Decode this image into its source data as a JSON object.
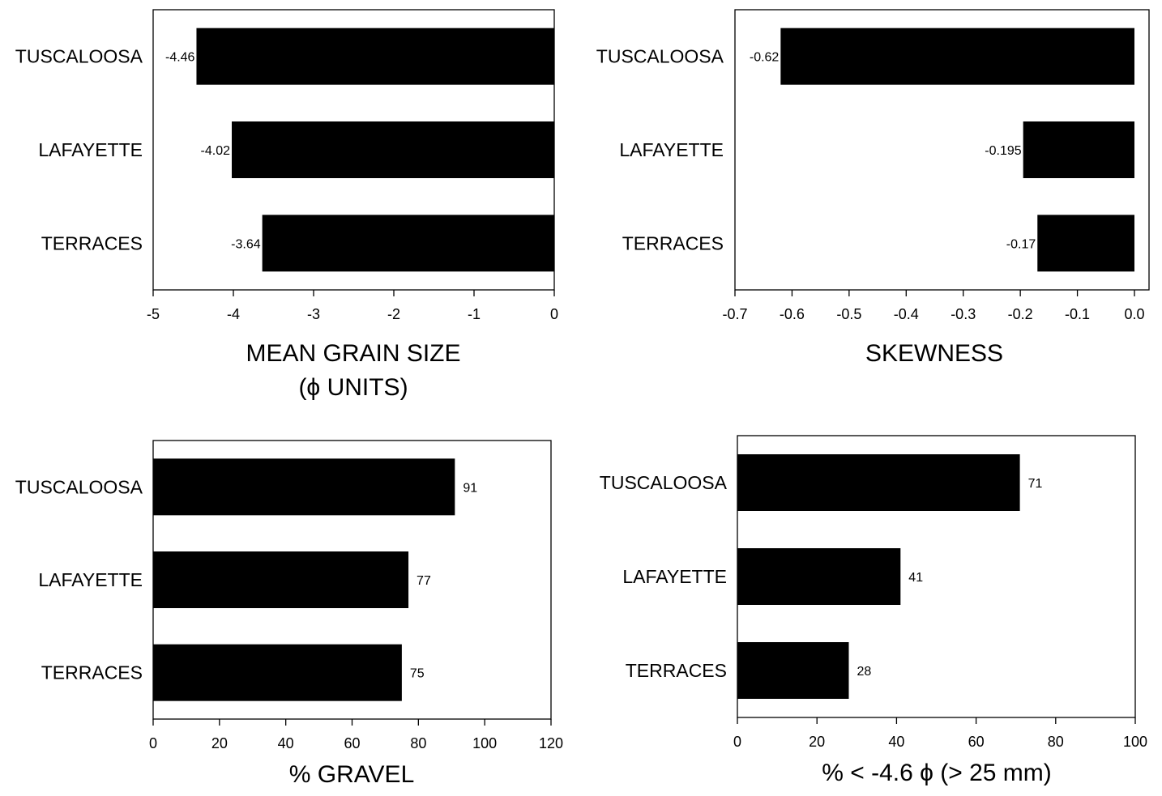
{
  "chart_data": [
    {
      "type": "bar",
      "orientation": "horizontal",
      "categories": [
        "TUSCALOOSA",
        "LAFAYETTE",
        "TERRACES"
      ],
      "values": [
        -4.46,
        -4.02,
        -3.64
      ],
      "data_labels": [
        "-4.46",
        "-4.02",
        "-3.64"
      ],
      "xlim": [
        -5,
        0
      ],
      "xticks": [
        -5,
        -4,
        -3,
        -2,
        -1,
        0
      ],
      "xtick_labels": [
        "-5",
        "-4",
        "-3",
        "-2",
        "-1",
        "0"
      ],
      "xlabel_line1": "MEAN GRAIN SIZE",
      "xlabel_line2": "(ϕ UNITS)",
      "grid": false
    },
    {
      "type": "bar",
      "orientation": "horizontal",
      "categories": [
        "TUSCALOOSA",
        "LAFAYETTE",
        "TERRACES"
      ],
      "values": [
        -0.62,
        -0.195,
        -0.17
      ],
      "data_labels": [
        "-0.62",
        "-0.195",
        "-0.17"
      ],
      "xlim": [
        -0.7,
        0.0
      ],
      "xticks": [
        -0.7,
        -0.6,
        -0.5,
        -0.4,
        -0.3,
        -0.2,
        -0.1,
        0.0
      ],
      "xtick_labels": [
        "-0.7",
        "-0.6",
        "-0.5",
        "-0.4",
        "-0.3",
        "-0.2",
        "-0.1",
        "0.0"
      ],
      "xlabel_line1": "SKEWNESS",
      "xlabel_line2": "",
      "grid": false
    },
    {
      "type": "bar",
      "orientation": "horizontal",
      "categories": [
        "TUSCALOOSA",
        "LAFAYETTE",
        "TERRACES"
      ],
      "values": [
        91,
        77,
        75
      ],
      "data_labels": [
        "91",
        "77",
        "75"
      ],
      "xlim": [
        0,
        120
      ],
      "xticks": [
        0,
        20,
        40,
        60,
        80,
        100,
        120
      ],
      "xtick_labels": [
        "0",
        "20",
        "40",
        "60",
        "80",
        "100",
        "120"
      ],
      "xlabel_line1": "% GRAVEL",
      "xlabel_line2": "",
      "grid": false
    },
    {
      "type": "bar",
      "orientation": "horizontal",
      "categories": [
        "TUSCALOOSA",
        "LAFAYETTE",
        "TERRACES"
      ],
      "values": [
        71,
        41,
        28
      ],
      "data_labels": [
        "71",
        "41",
        "28"
      ],
      "xlim": [
        0,
        100
      ],
      "xticks": [
        0,
        20,
        40,
        60,
        80,
        100
      ],
      "xtick_labels": [
        "0",
        "20",
        "40",
        "60",
        "80",
        "100"
      ],
      "xlabel_line1": "% < -4.6 ϕ (> 25 mm)",
      "xlabel_line2": "",
      "grid": false
    }
  ],
  "style": {
    "bar_color": "#000000",
    "background": "#ffffff"
  }
}
